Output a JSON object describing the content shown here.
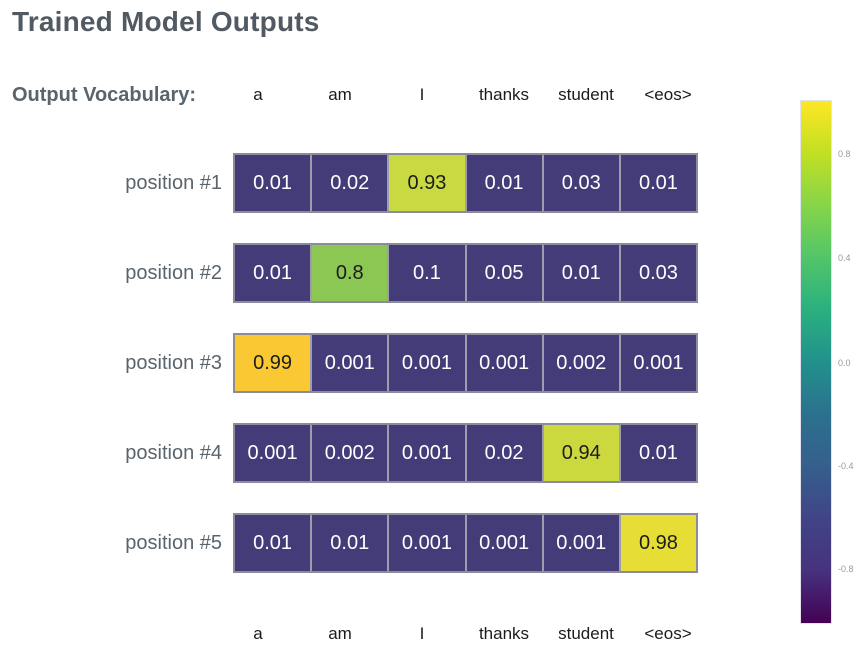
{
  "title": "Trained Model Outputs",
  "vocab_label": "Output Vocabulary:",
  "colors": {
    "title": "#515a62",
    "side_label": "#5a646c",
    "column_label": "#1b1b1b",
    "cell_dark": "#443c78",
    "cell_text_on_dark": "#ffffff",
    "cell_text_on_light": "#1c1c1c",
    "grid_border": "#8b8b9b",
    "colorbar_tick": "#9a9a9a"
  },
  "chart_data": {
    "type": "heatmap",
    "title": "Trained Model Outputs",
    "columns": [
      "a",
      "am",
      "I",
      "thanks",
      "student",
      "<eos>"
    ],
    "rows": [
      {
        "label": "position #1",
        "values": [
          "0.01",
          "0.02",
          "0.93",
          "0.01",
          "0.03",
          "0.01"
        ],
        "highlight_index": 2,
        "highlight_color": "#c9d942"
      },
      {
        "label": "position #2",
        "values": [
          "0.01",
          "0.8",
          "0.1",
          "0.05",
          "0.01",
          "0.03"
        ],
        "highlight_index": 1,
        "highlight_color": "#8cc653"
      },
      {
        "label": "position #3",
        "values": [
          "0.99",
          "0.001",
          "0.001",
          "0.001",
          "0.002",
          "0.001"
        ],
        "highlight_index": 0,
        "highlight_color": "#fac832"
      },
      {
        "label": "position #4",
        "values": [
          "0.001",
          "0.002",
          "0.001",
          "0.02",
          "0.94",
          "0.01"
        ],
        "highlight_index": 4,
        "highlight_color": "#ccd93e"
      },
      {
        "label": "position #5",
        "values": [
          "0.01",
          "0.01",
          "0.001",
          "0.001",
          "0.001",
          "0.98"
        ],
        "highlight_index": 5,
        "highlight_color": "#e6de35"
      }
    ],
    "colorbar": {
      "colormap": "viridis",
      "range": [
        -1,
        1
      ],
      "ticks": [
        "0.8",
        "0.4",
        "0.0",
        "-0.4",
        "-0.8"
      ],
      "gradient": [
        "#fde725",
        "#5ec962",
        "#21918c",
        "#3b528b",
        "#440154"
      ]
    }
  }
}
